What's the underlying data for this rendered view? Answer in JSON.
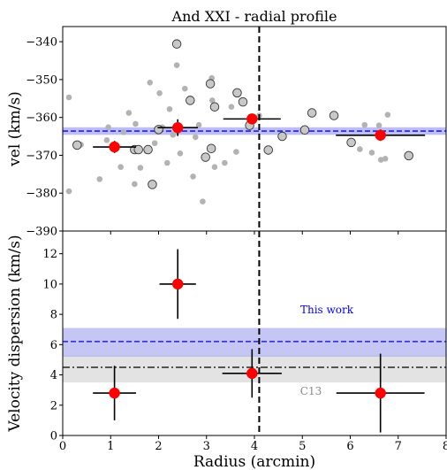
{
  "figure": {
    "title": "And XXI - radial profile",
    "xlabel": "Radius (arcmin)"
  },
  "colors": {
    "axis": "#000000",
    "grey_point": "#b3b3b3",
    "member_face": "#c8c8c8",
    "binned_point": "#ff0000",
    "this_work": "#0000ff",
    "this_work_band": "#b3b3f2",
    "c13": "#000000",
    "c13_band": "#dcdcdc",
    "c13_label": "#888888"
  },
  "chart_data": [
    {
      "panel": "top",
      "type": "scatter",
      "ylabel": "vel (km/s)",
      "xlim": [
        0,
        8
      ],
      "ylim": [
        -390,
        -336
      ],
      "y_inverted": true,
      "xticks": [
        0,
        1,
        2,
        3,
        4,
        5,
        6,
        7,
        8
      ],
      "yticks": [
        -390,
        -380,
        -370,
        -360,
        -350,
        -340
      ],
      "vline_x": 4.1,
      "systemic_velocity": {
        "value": -363.6,
        "band": [
          -364.6,
          -362.6
        ]
      },
      "background_stars": [
        [
          0.13,
          -354.7
        ],
        [
          0.13,
          -379.5
        ],
        [
          0.38,
          -367.2
        ],
        [
          0.77,
          -376.3
        ],
        [
          0.92,
          -366.0
        ],
        [
          0.95,
          -362.6
        ],
        [
          1.21,
          -373.1
        ],
        [
          1.27,
          -363.9
        ],
        [
          1.38,
          -358.8
        ],
        [
          1.5,
          -377.6
        ],
        [
          1.52,
          -361.7
        ],
        [
          1.62,
          -373.3
        ],
        [
          1.75,
          -368.9
        ],
        [
          1.82,
          -350.8
        ],
        [
          1.92,
          -366.8
        ],
        [
          2.02,
          -353.6
        ],
        [
          2.08,
          -362.6
        ],
        [
          2.18,
          -372.0
        ],
        [
          2.23,
          -357.8
        ],
        [
          2.3,
          -364.6
        ],
        [
          2.38,
          -346.2
        ],
        [
          2.42,
          -363.4
        ],
        [
          2.45,
          -369.5
        ],
        [
          2.55,
          -352.4
        ],
        [
          2.72,
          -375.6
        ],
        [
          2.77,
          -365.2
        ],
        [
          2.84,
          -362.0
        ],
        [
          2.92,
          -382.2
        ],
        [
          3.11,
          -349.6
        ],
        [
          3.12,
          -355.5
        ],
        [
          3.17,
          -373.1
        ],
        [
          3.38,
          -372.0
        ],
        [
          3.52,
          -357.2
        ],
        [
          3.62,
          -369.1
        ],
        [
          4.1,
          -359.5
        ],
        [
          6.2,
          -368.4
        ],
        [
          6.3,
          -362.0
        ],
        [
          6.45,
          -369.3
        ],
        [
          6.6,
          -362.1
        ],
        [
          6.64,
          -371.2
        ],
        [
          6.73,
          -370.9
        ],
        [
          6.78,
          -359.3
        ]
      ],
      "member_stars": [
        [
          0.3,
          -367.3
        ],
        [
          1.5,
          -368.5
        ],
        [
          1.58,
          -368.5
        ],
        [
          1.78,
          -368.5
        ],
        [
          1.87,
          -377.7
        ],
        [
          2.0,
          -363.2
        ],
        [
          2.38,
          -340.6
        ],
        [
          2.66,
          -355.5
        ],
        [
          2.98,
          -370.5
        ],
        [
          3.08,
          -351.1
        ],
        [
          3.1,
          -368.2
        ],
        [
          3.17,
          -357.2
        ],
        [
          3.64,
          -353.5
        ],
        [
          3.76,
          -355.9
        ],
        [
          3.9,
          -362.1
        ],
        [
          4.29,
          -368.6
        ],
        [
          4.58,
          -365.0
        ],
        [
          5.05,
          -363.3
        ],
        [
          5.2,
          -358.8
        ],
        [
          5.66,
          -359.5
        ],
        [
          6.02,
          -366.6
        ],
        [
          7.22,
          -370.1
        ]
      ],
      "binned": [
        {
          "x": 1.08,
          "y": -367.8,
          "xerr": 0.45,
          "yerr": 1.6
        },
        {
          "x": 2.4,
          "y": -362.7,
          "xerr": 0.42,
          "yerr": 2.2
        },
        {
          "x": 3.95,
          "y": -360.4,
          "xerr": 0.6,
          "yerr": 1.3
        },
        {
          "x": 6.63,
          "y": -364.7,
          "xerr": 0.93,
          "yerr": 1.5
        }
      ]
    },
    {
      "panel": "bottom",
      "type": "scatter",
      "ylabel": "Velocity dispersion (km/s)",
      "xlim": [
        0,
        8
      ],
      "ylim": [
        0,
        13.5
      ],
      "xticks": [
        0,
        1,
        2,
        3,
        4,
        5,
        6,
        7,
        8
      ],
      "yticks": [
        0,
        2,
        4,
        6,
        8,
        10,
        12
      ],
      "vline_x": 4.1,
      "this_work": {
        "label": "This work",
        "value": 6.2,
        "band": [
          5.2,
          7.1
        ]
      },
      "c13": {
        "label": "C13",
        "value": 4.5,
        "band": [
          3.5,
          5.3
        ]
      },
      "binned": [
        {
          "x": 1.08,
          "y": 2.8,
          "xerr": 0.45,
          "yerr": 1.8
        },
        {
          "x": 2.4,
          "y": 10.0,
          "xerr": 0.38,
          "yerr": 2.3
        },
        {
          "x": 3.95,
          "y": 4.1,
          "xerr": 0.62,
          "yerr": 1.6
        },
        {
          "x": 6.63,
          "y": 2.8,
          "xerr": 0.92,
          "yerr": 2.6
        }
      ]
    }
  ]
}
